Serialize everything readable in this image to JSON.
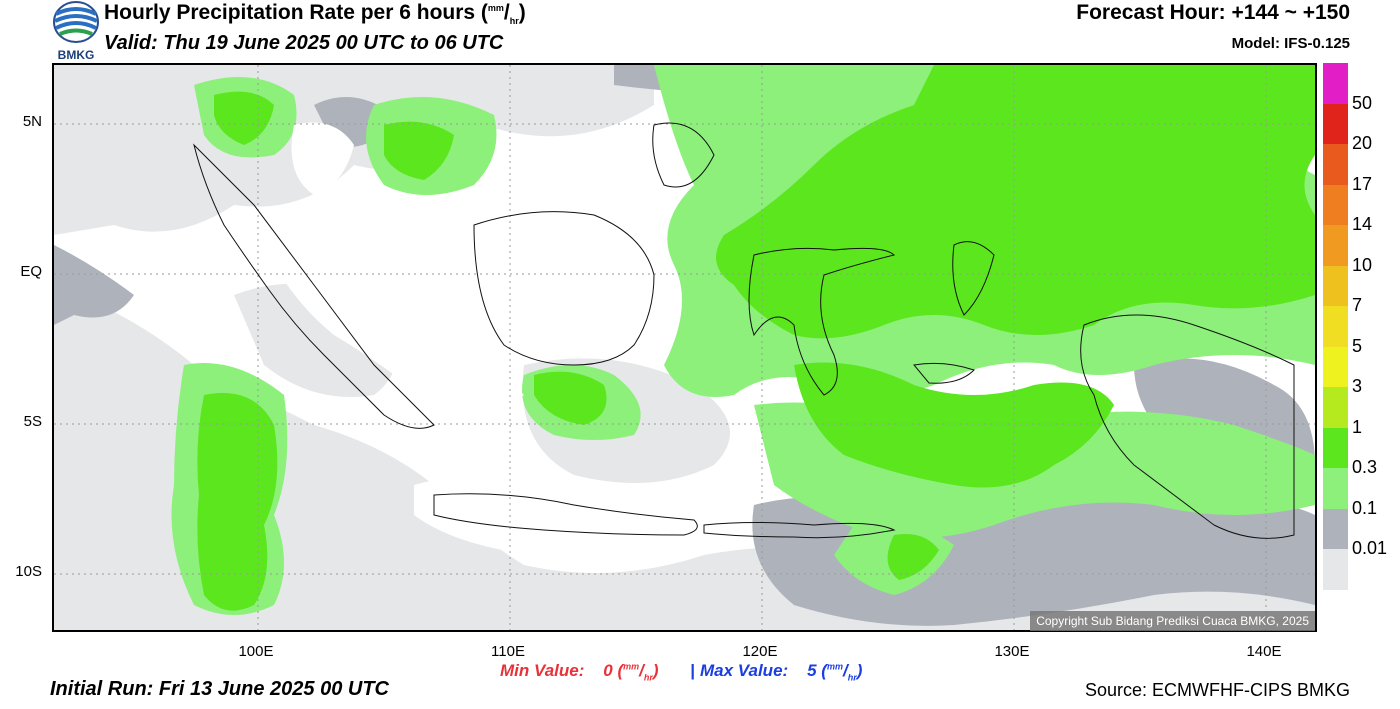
{
  "header": {
    "title_main": "Hourly Precipitation Rate per 6 hours (",
    "title_unit_num": "mm",
    "title_unit_sep": "/",
    "title_unit_den": "hr",
    "title_close": ")",
    "valid": "Valid: Thu 19 June 2025 00 UTC to 06 UTC",
    "forecast_hour": "Forecast Hour: +144 ~ +150",
    "model": "Model: IFS-0.125",
    "logo_text": "BMKG"
  },
  "map": {
    "lat_labels": [
      "5N",
      "EQ",
      "5S",
      "10S"
    ],
    "lon_labels": [
      "100E",
      "110E",
      "120E",
      "130E",
      "140E"
    ],
    "copyright": "Copyright Sub Bidang Prediksi Cuaca BMKG, 2025"
  },
  "colorbar": {
    "labels": [
      "50",
      "20",
      "17",
      "14",
      "10",
      "7",
      "5",
      "3",
      "1",
      "0.3",
      "0.1",
      "0.01"
    ],
    "colors": [
      "#e21fc6",
      "#e0241b",
      "#e95a1f",
      "#ef7e20",
      "#f09a22",
      "#eec11f",
      "#f0de23",
      "#eef21e",
      "#b5ea1e",
      "#5be61e",
      "#8cf07b",
      "#aeb2bb",
      "#e6e7e8"
    ]
  },
  "footer": {
    "min_label": "Min Value:",
    "min_value": "0",
    "max_label": "Max Value:",
    "max_value": "5",
    "unit_num": "mm",
    "unit_den": "hr",
    "separator": "|",
    "initial_run": "Initial Run: Fri 13 June 2025 00 UTC",
    "source": "Source: ECMWFHF-CIPS BMKG"
  }
}
